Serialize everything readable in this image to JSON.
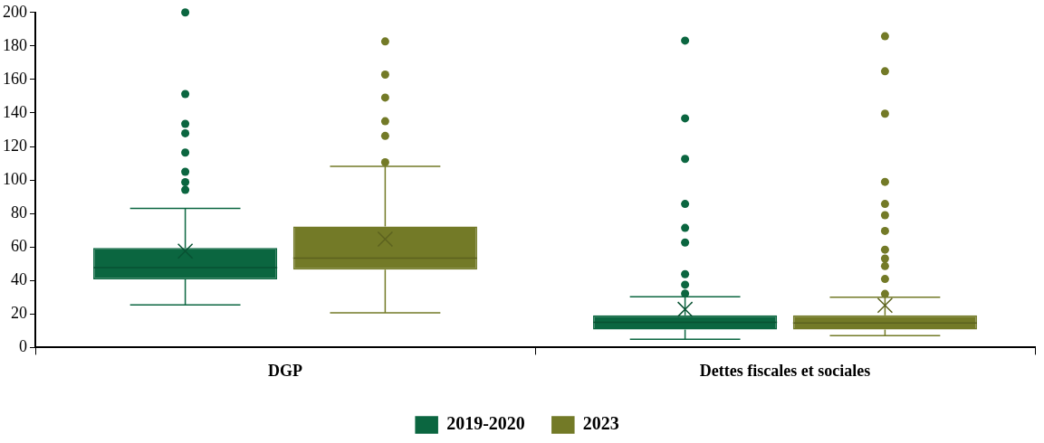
{
  "chart_data": {
    "type": "box",
    "categories": [
      "DGP",
      "Dettes fiscales et sociales"
    ],
    "series": [
      {
        "name": "2019-2020",
        "color": "#0b6640",
        "boxes": [
          {
            "low": 25.4,
            "q1": 40.7,
            "median": 47.7,
            "q3": 59.4,
            "high": 83,
            "mean": 57.6,
            "outliers": [
              94.1,
              98.7,
              104.9,
              116.4,
              127.9,
              133.5,
              151.3,
              200
            ]
          },
          {
            "low": 4.9,
            "q1": 10.8,
            "median": 15.1,
            "q3": 19.3,
            "high": 30.3,
            "mean": 22.8,
            "outliers": [
              32.2,
              37.5,
              43.8,
              62.7,
              71.4,
              85.7,
              112.6,
              136.8,
              183.2
            ]
          }
        ]
      },
      {
        "name": "2023",
        "color": "#737a27",
        "boxes": [
          {
            "low": 20.7,
            "q1": 46.5,
            "median": 53.4,
            "q3": 72.3,
            "high": 108.2,
            "mean": 64.7,
            "outliers": [
              110.6,
              126.3,
              135.1,
              149.2,
              162.9,
              182.7
            ]
          },
          {
            "low": 7.1,
            "q1": 10.8,
            "median": 14.7,
            "q3": 19.3,
            "high": 30.1,
            "mean": 25.2,
            "outliers": [
              32,
              40.9,
              48.6,
              53.1,
              58.4,
              69.6,
              79,
              85.7,
              98.9,
              139.6,
              164.9,
              185.8
            ]
          }
        ]
      }
    ],
    "ylim": [
      0,
      200
    ],
    "yticks": [
      0,
      20,
      40,
      60,
      80,
      100,
      120,
      140,
      160,
      180,
      200
    ],
    "grid": false,
    "legend": "bottom"
  }
}
